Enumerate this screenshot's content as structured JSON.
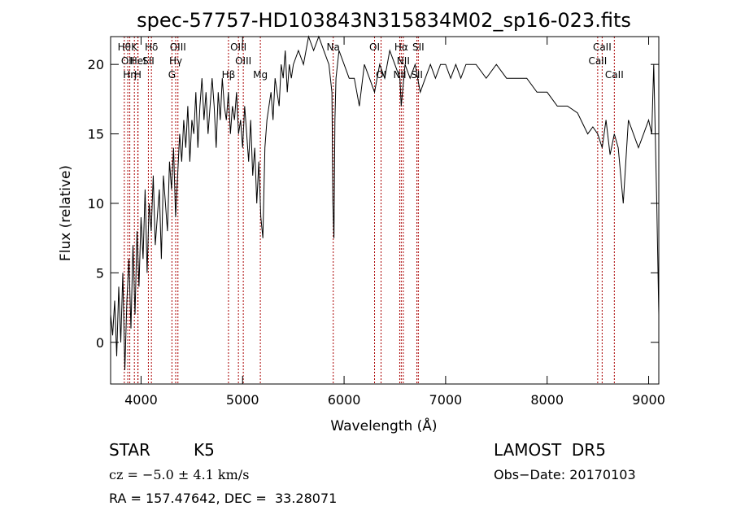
{
  "chart_data": {
    "type": "line",
    "title": "spec-57757-HD103843N315834M02_sp16-023.fits",
    "xlabel": "Wavelength (Å)",
    "ylabel": "Flux (relative)",
    "xlim": [
      3700,
      9100
    ],
    "ylim": [
      -3,
      22
    ],
    "xticks": [
      4000,
      5000,
      6000,
      7000,
      8000,
      9000
    ],
    "yticks": [
      0,
      5,
      10,
      15,
      20
    ],
    "grid": false,
    "line_color": "#000000",
    "marker_color": "#aa0000",
    "series": [
      {
        "x": [
          3700,
          3720,
          3740,
          3760,
          3780,
          3800,
          3820,
          3840,
          3860,
          3880,
          3900,
          3920,
          3940,
          3960,
          3980,
          4000,
          4020,
          4040,
          4060,
          4080,
          4100,
          4120,
          4140,
          4160,
          4180,
          4200,
          4220,
          4240,
          4260,
          4280,
          4300,
          4320,
          4340,
          4360,
          4380,
          4400,
          4420,
          4440,
          4460,
          4480,
          4500,
          4520,
          4540,
          4560,
          4580,
          4600,
          4620,
          4640,
          4660,
          4680,
          4700,
          4720,
          4740,
          4760,
          4780,
          4800,
          4820,
          4840,
          4860,
          4880,
          4900,
          4920,
          4940,
          4960,
          4980,
          5000,
          5020,
          5040,
          5060,
          5080,
          5100,
          5120,
          5140,
          5160,
          5180,
          5200,
          5220,
          5240,
          5260,
          5280,
          5300,
          5320,
          5340,
          5360,
          5380,
          5400,
          5420,
          5440,
          5460,
          5480,
          5500,
          5550,
          5600,
          5650,
          5700,
          5750,
          5800,
          5850,
          5880,
          5890,
          5900,
          5910,
          5920,
          5950,
          6000,
          6050,
          6100,
          6150,
          6200,
          6250,
          6300,
          6350,
          6400,
          6450,
          6500,
          6550,
          6563,
          6600,
          6650,
          6700,
          6750,
          6800,
          6850,
          6900,
          6950,
          7000,
          7050,
          7100,
          7150,
          7200,
          7300,
          7400,
          7500,
          7600,
          7700,
          7800,
          7900,
          8000,
          8100,
          8200,
          8300,
          8400,
          8450,
          8498,
          8542,
          8580,
          8620,
          8662,
          8700,
          8750,
          8800,
          8850,
          8900,
          8950,
          9000,
          9030,
          9050,
          9080,
          9100
        ],
        "y": [
          2,
          0.5,
          3,
          -1,
          4,
          0,
          5,
          -2,
          3,
          6,
          1,
          7,
          2,
          8,
          4,
          9,
          6,
          11,
          5,
          10,
          8,
          12,
          7,
          9,
          11,
          6,
          12,
          10,
          8,
          13,
          11,
          14,
          9,
          12,
          15,
          13,
          16,
          14,
          17,
          13,
          16,
          15,
          18,
          14,
          17,
          19,
          16,
          18,
          15,
          17,
          19,
          17,
          14,
          18,
          16,
          19,
          17,
          16,
          18,
          15,
          17,
          16,
          18,
          15,
          16,
          14,
          17,
          15,
          13,
          16,
          12,
          14,
          10,
          13,
          9,
          7.5,
          14,
          16,
          17,
          18,
          16,
          19,
          18,
          17,
          20,
          19,
          21,
          18,
          20,
          19,
          20,
          21,
          20,
          22,
          21,
          22,
          21,
          20,
          18,
          10,
          7.5,
          16,
          19,
          21,
          20,
          19,
          19,
          17,
          20,
          19,
          18,
          20,
          19,
          21,
          20,
          19,
          17,
          20,
          19,
          20,
          18,
          19,
          20,
          19,
          20,
          20,
          19,
          20,
          19,
          20,
          20,
          19,
          20,
          19,
          19,
          19,
          18,
          18,
          17,
          17,
          16.5,
          15,
          15.5,
          15,
          14,
          16,
          13.5,
          15,
          14,
          10,
          16,
          15,
          14,
          15,
          16,
          15,
          20,
          10,
          2
        ]
      }
    ],
    "line_markers": [
      {
        "wl": 3835,
        "label": "Hθ",
        "row": 1
      },
      {
        "wl": 3869,
        "label": "OII",
        "row": 2
      },
      {
        "wl": 3889,
        "label": "Hη",
        "row": 3
      },
      {
        "wl": 3934,
        "label": "K",
        "row": 1
      },
      {
        "wl": 3970,
        "label": "HeI",
        "row": 2
      },
      {
        "wl": 3968,
        "label": "H",
        "row": 3
      },
      {
        "wl": 4072,
        "label": "SII",
        "row": 2
      },
      {
        "wl": 4102,
        "label": "Hδ",
        "row": 1
      },
      {
        "wl": 4304,
        "label": "G",
        "row": 3
      },
      {
        "wl": 4341,
        "label": "Hγ",
        "row": 2
      },
      {
        "wl": 4363,
        "label": "OIII",
        "row": 1
      },
      {
        "wl": 4861,
        "label": "Hβ",
        "row": 3
      },
      {
        "wl": 4959,
        "label": "OIII",
        "row": 1
      },
      {
        "wl": 5007,
        "label": "OIII",
        "row": 2
      },
      {
        "wl": 5175,
        "label": "Mg",
        "row": 3
      },
      {
        "wl": 5893,
        "label": "Na",
        "row": 0
      },
      {
        "wl": 6300,
        "label": "OI",
        "row": 1
      },
      {
        "wl": 6364,
        "label": "OI",
        "row": 3
      },
      {
        "wl": 6548,
        "label": "NII",
        "row": 3
      },
      {
        "wl": 6563,
        "label": "Hα",
        "row": 1
      },
      {
        "wl": 6583,
        "label": "NII",
        "row": 2
      },
      {
        "wl": 6717,
        "label": "SII",
        "row": 3
      },
      {
        "wl": 6731,
        "label": "SII",
        "row": 1
      },
      {
        "wl": 8498,
        "label": "CaII",
        "row": 2
      },
      {
        "wl": 8542,
        "label": "CaII",
        "row": 1
      },
      {
        "wl": 8662,
        "label": "CaII",
        "row": 3
      }
    ]
  },
  "info": {
    "class_label": "STAR",
    "subclass": "K5",
    "cz": "cz = −5.0 ± 4.1 km/s",
    "coords": "RA = 157.47642, DEC =  33.28071",
    "survey": "LAMOST  DR5",
    "obs_date": "Obs−Date: 20170103"
  }
}
